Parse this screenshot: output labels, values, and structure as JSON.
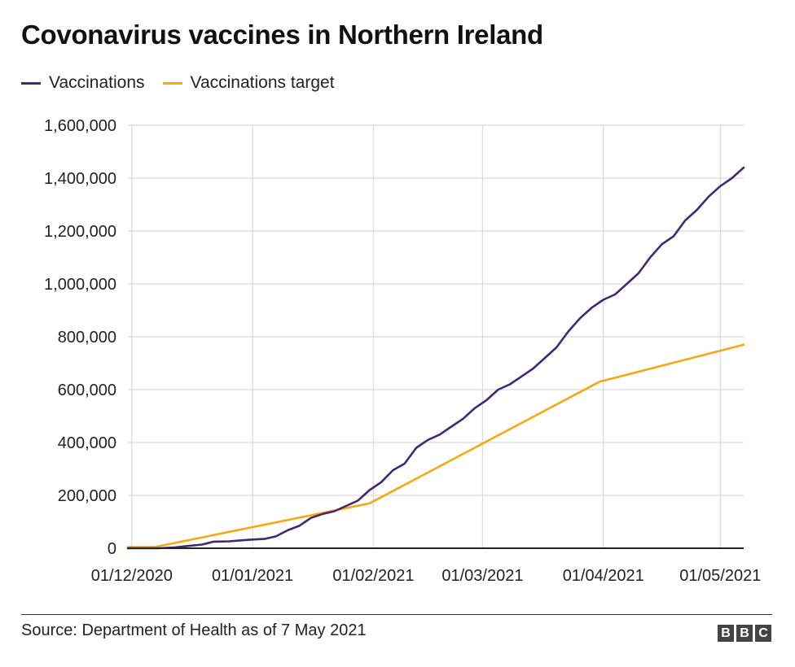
{
  "chart_data": {
    "type": "line",
    "title": "Covonavirus vaccines in Northern Ireland",
    "source": "Source: Department of Health as of 7 May 2021",
    "legend_position": "top-left",
    "grid": true,
    "x_axis": {
      "type": "date",
      "range": [
        "2020-11-30",
        "2021-05-07"
      ],
      "ticks": [
        {
          "date": "2020-12-01",
          "label": "01/12/2020"
        },
        {
          "date": "2021-01-01",
          "label": "01/01/2021"
        },
        {
          "date": "2021-02-01",
          "label": "01/02/2021"
        },
        {
          "date": "2021-03-01",
          "label": "01/03/2021"
        },
        {
          "date": "2021-04-01",
          "label": "01/04/2021"
        },
        {
          "date": "2021-05-01",
          "label": "01/05/2021"
        }
      ]
    },
    "y_axis": {
      "range": [
        0,
        1600000
      ],
      "ticks": [
        {
          "value": 0,
          "label": "0"
        },
        {
          "value": 200000,
          "label": "200,000"
        },
        {
          "value": 400000,
          "label": "400,000"
        },
        {
          "value": 600000,
          "label": "600,000"
        },
        {
          "value": 800000,
          "label": "800,000"
        },
        {
          "value": 1000000,
          "label": "1,000,000"
        },
        {
          "value": 1200000,
          "label": "1,200,000"
        },
        {
          "value": 1400000,
          "label": "1,400,000"
        },
        {
          "value": 1600000,
          "label": "1,600,000"
        }
      ]
    },
    "series": [
      {
        "name": "Vaccinations",
        "color": "#3f2a72",
        "points": [
          [
            "2020-11-30",
            0
          ],
          [
            "2020-12-08",
            0
          ],
          [
            "2020-12-12",
            3000
          ],
          [
            "2020-12-15",
            8000
          ],
          [
            "2020-12-19",
            14000
          ],
          [
            "2020-12-22",
            25000
          ],
          [
            "2020-12-26",
            26000
          ],
          [
            "2020-12-29",
            30000
          ],
          [
            "2021-01-01",
            33000
          ],
          [
            "2021-01-04",
            35000
          ],
          [
            "2021-01-07",
            45000
          ],
          [
            "2021-01-10",
            68000
          ],
          [
            "2021-01-13",
            85000
          ],
          [
            "2021-01-16",
            115000
          ],
          [
            "2021-01-19",
            130000
          ],
          [
            "2021-01-22",
            140000
          ],
          [
            "2021-01-25",
            160000
          ],
          [
            "2021-01-28",
            180000
          ],
          [
            "2021-01-31",
            220000
          ],
          [
            "2021-02-03",
            250000
          ],
          [
            "2021-02-06",
            295000
          ],
          [
            "2021-02-09",
            320000
          ],
          [
            "2021-02-12",
            380000
          ],
          [
            "2021-02-15",
            410000
          ],
          [
            "2021-02-18",
            430000
          ],
          [
            "2021-02-21",
            460000
          ],
          [
            "2021-02-24",
            490000
          ],
          [
            "2021-02-27",
            530000
          ],
          [
            "2021-03-02",
            560000
          ],
          [
            "2021-03-05",
            600000
          ],
          [
            "2021-03-08",
            620000
          ],
          [
            "2021-03-11",
            650000
          ],
          [
            "2021-03-14",
            680000
          ],
          [
            "2021-03-17",
            720000
          ],
          [
            "2021-03-20",
            760000
          ],
          [
            "2021-03-23",
            820000
          ],
          [
            "2021-03-26",
            870000
          ],
          [
            "2021-03-29",
            910000
          ],
          [
            "2021-04-01",
            940000
          ],
          [
            "2021-04-04",
            960000
          ],
          [
            "2021-04-07",
            1000000
          ],
          [
            "2021-04-10",
            1040000
          ],
          [
            "2021-04-13",
            1100000
          ],
          [
            "2021-04-16",
            1150000
          ],
          [
            "2021-04-19",
            1180000
          ],
          [
            "2021-04-22",
            1240000
          ],
          [
            "2021-04-25",
            1280000
          ],
          [
            "2021-04-28",
            1330000
          ],
          [
            "2021-05-01",
            1370000
          ],
          [
            "2021-05-04",
            1400000
          ],
          [
            "2021-05-07",
            1440000
          ]
        ]
      },
      {
        "name": "Vaccinations target",
        "color": "#f4a914",
        "points": [
          [
            "2020-11-30",
            5000
          ],
          [
            "2020-12-07",
            5000
          ],
          [
            "2021-01-31",
            170000
          ],
          [
            "2021-03-31",
            630000
          ],
          [
            "2021-05-07",
            770000
          ]
        ]
      }
    ]
  },
  "logo": {
    "letters": [
      "B",
      "B",
      "C"
    ]
  }
}
